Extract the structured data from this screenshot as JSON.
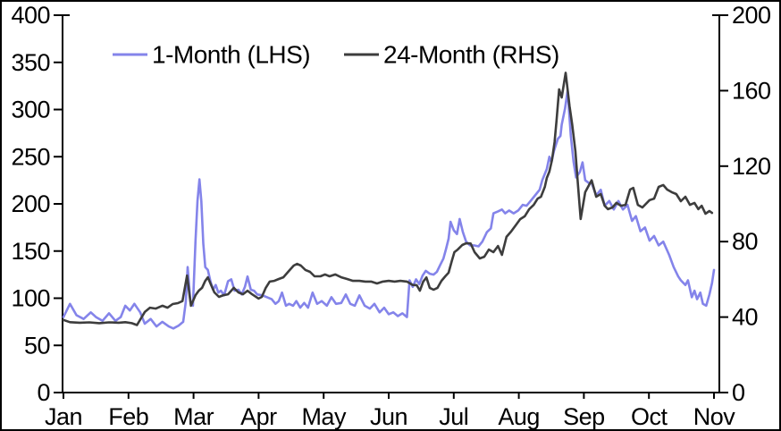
{
  "chart_data": {
    "type": "line",
    "title": "",
    "grid": false,
    "legend_position": "top",
    "x_axis": {
      "categories": [
        "Jan",
        "Feb",
        "Mar",
        "Apr",
        "May",
        "Jun",
        "Jul",
        "Aug",
        "Sep",
        "Oct",
        "Nov"
      ],
      "range": [
        0,
        10.1
      ]
    },
    "y_axis_left": {
      "ticks": [
        0,
        50,
        100,
        150,
        200,
        250,
        300,
        350,
        400
      ],
      "range": [
        0,
        400
      ]
    },
    "y_axis_right": {
      "ticks": [
        0,
        40,
        80,
        120,
        160,
        200
      ],
      "range": [
        0,
        200
      ]
    },
    "axis_color": "#000000",
    "series": [
      {
        "name": "1-Month (LHS)",
        "axis": "left",
        "color": "#8484ea",
        "points": [
          [
            0.0,
            80
          ],
          [
            0.1,
            94
          ],
          [
            0.2,
            82
          ],
          [
            0.31,
            78
          ],
          [
            0.42,
            85
          ],
          [
            0.5,
            80
          ],
          [
            0.6,
            76
          ],
          [
            0.7,
            84
          ],
          [
            0.8,
            76
          ],
          [
            0.88,
            80
          ],
          [
            0.95,
            92
          ],
          [
            1.02,
            87
          ],
          [
            1.09,
            94
          ],
          [
            1.18,
            85
          ],
          [
            1.25,
            73
          ],
          [
            1.34,
            78
          ],
          [
            1.43,
            70
          ],
          [
            1.52,
            75
          ],
          [
            1.62,
            70
          ],
          [
            1.69,
            68
          ],
          [
            1.77,
            71
          ],
          [
            1.84,
            75
          ],
          [
            1.88,
            96
          ],
          [
            1.91,
            133
          ],
          [
            1.95,
            97
          ],
          [
            1.99,
            92
          ],
          [
            2.03,
            161
          ],
          [
            2.06,
            203
          ],
          [
            2.09,
            226
          ],
          [
            2.12,
            203
          ],
          [
            2.15,
            158
          ],
          [
            2.18,
            133
          ],
          [
            2.22,
            130
          ],
          [
            2.26,
            118
          ],
          [
            2.3,
            109
          ],
          [
            2.34,
            114
          ],
          [
            2.38,
            106
          ],
          [
            2.42,
            108
          ],
          [
            2.47,
            103
          ],
          [
            2.53,
            118
          ],
          [
            2.58,
            120
          ],
          [
            2.63,
            108
          ],
          [
            2.69,
            109
          ],
          [
            2.74,
            104
          ],
          [
            2.79,
            112
          ],
          [
            2.83,
            123
          ],
          [
            2.88,
            109
          ],
          [
            2.93,
            108
          ],
          [
            2.98,
            104
          ],
          [
            3.06,
            103
          ],
          [
            3.13,
            101
          ],
          [
            3.2,
            99
          ],
          [
            3.26,
            94
          ],
          [
            3.31,
            97
          ],
          [
            3.36,
            106
          ],
          [
            3.42,
            92
          ],
          [
            3.47,
            94
          ],
          [
            3.53,
            92
          ],
          [
            3.58,
            97
          ],
          [
            3.64,
            90
          ],
          [
            3.7,
            95
          ],
          [
            3.76,
            90
          ],
          [
            3.83,
            106
          ],
          [
            3.9,
            94
          ],
          [
            3.97,
            97
          ],
          [
            4.05,
            92
          ],
          [
            4.12,
            101
          ],
          [
            4.19,
            94
          ],
          [
            4.27,
            95
          ],
          [
            4.34,
            104
          ],
          [
            4.41,
            94
          ],
          [
            4.48,
            92
          ],
          [
            4.55,
            103
          ],
          [
            4.63,
            92
          ],
          [
            4.71,
            89
          ],
          [
            4.78,
            94
          ],
          [
            4.86,
            85
          ],
          [
            4.93,
            90
          ],
          [
            5.0,
            83
          ],
          [
            5.07,
            85
          ],
          [
            5.14,
            81
          ],
          [
            5.21,
            84
          ],
          [
            5.28,
            80
          ],
          [
            5.32,
            119
          ],
          [
            5.37,
            112
          ],
          [
            5.42,
            120
          ],
          [
            5.47,
            115
          ],
          [
            5.52,
            124
          ],
          [
            5.57,
            129
          ],
          [
            5.63,
            126
          ],
          [
            5.69,
            125
          ],
          [
            5.74,
            128
          ],
          [
            5.79,
            135
          ],
          [
            5.84,
            142
          ],
          [
            5.88,
            152
          ],
          [
            5.92,
            163
          ],
          [
            5.95,
            181
          ],
          [
            6.0,
            172
          ],
          [
            6.05,
            168
          ],
          [
            6.09,
            184
          ],
          [
            6.14,
            170
          ],
          [
            6.19,
            160
          ],
          [
            6.25,
            156
          ],
          [
            6.31,
            156
          ],
          [
            6.38,
            155
          ],
          [
            6.44,
            160
          ],
          [
            6.51,
            170
          ],
          [
            6.57,
            174
          ],
          [
            6.61,
            190
          ],
          [
            6.68,
            192
          ],
          [
            6.74,
            194
          ],
          [
            6.79,
            190
          ],
          [
            6.85,
            193
          ],
          [
            6.92,
            190
          ],
          [
            6.99,
            193
          ],
          [
            7.06,
            199
          ],
          [
            7.12,
            198
          ],
          [
            7.18,
            203
          ],
          [
            7.25,
            209
          ],
          [
            7.32,
            215
          ],
          [
            7.36,
            225
          ],
          [
            7.43,
            237
          ],
          [
            7.47,
            250
          ],
          [
            7.5,
            244
          ],
          [
            7.54,
            256
          ],
          [
            7.6,
            269
          ],
          [
            7.64,
            272
          ],
          [
            7.66,
            284
          ],
          [
            7.71,
            301
          ],
          [
            7.75,
            320
          ],
          [
            7.8,
            272
          ],
          [
            7.84,
            245
          ],
          [
            7.88,
            228
          ],
          [
            7.94,
            234
          ],
          [
            7.98,
            244
          ],
          [
            8.02,
            225
          ],
          [
            8.08,
            222
          ],
          [
            8.12,
            222
          ],
          [
            8.19,
            209
          ],
          [
            8.26,
            215
          ],
          [
            8.32,
            198
          ],
          [
            8.39,
            203
          ],
          [
            8.46,
            194
          ],
          [
            8.53,
            203
          ],
          [
            8.6,
            194
          ],
          [
            8.67,
            199
          ],
          [
            8.74,
            182
          ],
          [
            8.8,
            187
          ],
          [
            8.87,
            171
          ],
          [
            8.94,
            175
          ],
          [
            9.01,
            161
          ],
          [
            9.08,
            166
          ],
          [
            9.15,
            156
          ],
          [
            9.22,
            160
          ],
          [
            9.31,
            146
          ],
          [
            9.38,
            133
          ],
          [
            9.45,
            123
          ],
          [
            9.49,
            119
          ],
          [
            9.56,
            114
          ],
          [
            9.6,
            119
          ],
          [
            9.66,
            101
          ],
          [
            9.7,
            108
          ],
          [
            9.74,
            99
          ],
          [
            9.79,
            106
          ],
          [
            9.83,
            94
          ],
          [
            9.88,
            92
          ],
          [
            9.93,
            104
          ],
          [
            9.97,
            116
          ],
          [
            10.0,
            130
          ]
        ]
      },
      {
        "name": "24-Month (RHS)",
        "axis": "right",
        "color": "#3d3d3d",
        "points": [
          [
            0.0,
            38.5
          ],
          [
            0.1,
            37.3
          ],
          [
            0.25,
            37.0
          ],
          [
            0.4,
            37.2
          ],
          [
            0.55,
            36.8
          ],
          [
            0.7,
            37.2
          ],
          [
            0.85,
            37.0
          ],
          [
            0.95,
            37.3
          ],
          [
            1.05,
            36.8
          ],
          [
            1.13,
            35.8
          ],
          [
            1.25,
            42.7
          ],
          [
            1.33,
            45.0
          ],
          [
            1.42,
            44.5
          ],
          [
            1.52,
            46.0
          ],
          [
            1.6,
            45.0
          ],
          [
            1.68,
            46.9
          ],
          [
            1.76,
            47.4
          ],
          [
            1.83,
            48.5
          ],
          [
            1.9,
            62.0
          ],
          [
            1.96,
            46.0
          ],
          [
            2.03,
            51.6
          ],
          [
            2.08,
            54.0
          ],
          [
            2.13,
            55.5
          ],
          [
            2.18,
            59.2
          ],
          [
            2.22,
            61.1
          ],
          [
            2.27,
            56.9
          ],
          [
            2.32,
            53.1
          ],
          [
            2.39,
            50.7
          ],
          [
            2.46,
            51.6
          ],
          [
            2.53,
            52.1
          ],
          [
            2.62,
            55.5
          ],
          [
            2.69,
            53.1
          ],
          [
            2.76,
            52.1
          ],
          [
            2.83,
            54.0
          ],
          [
            2.9,
            52.1
          ],
          [
            3.0,
            49.8
          ],
          [
            3.05,
            50.7
          ],
          [
            3.11,
            55.5
          ],
          [
            3.17,
            58.8
          ],
          [
            3.24,
            59.2
          ],
          [
            3.31,
            60.2
          ],
          [
            3.38,
            61.1
          ],
          [
            3.48,
            65.0
          ],
          [
            3.54,
            67.3
          ],
          [
            3.59,
            68.2
          ],
          [
            3.65,
            67.3
          ],
          [
            3.72,
            65.0
          ],
          [
            3.79,
            64.0
          ],
          [
            3.86,
            61.6
          ],
          [
            3.95,
            61.6
          ],
          [
            4.02,
            62.6
          ],
          [
            4.09,
            61.6
          ],
          [
            4.18,
            62.6
          ],
          [
            4.27,
            61.1
          ],
          [
            4.36,
            60.2
          ],
          [
            4.45,
            59.2
          ],
          [
            4.55,
            59.2
          ],
          [
            4.64,
            58.8
          ],
          [
            4.73,
            58.8
          ],
          [
            4.82,
            57.8
          ],
          [
            4.91,
            58.8
          ],
          [
            5.0,
            59.2
          ],
          [
            5.09,
            58.8
          ],
          [
            5.18,
            59.2
          ],
          [
            5.28,
            58.8
          ],
          [
            5.37,
            57.0
          ],
          [
            5.43,
            56.9
          ],
          [
            5.48,
            54.0
          ],
          [
            5.53,
            58.8
          ],
          [
            5.58,
            61.0
          ],
          [
            5.63,
            55.5
          ],
          [
            5.69,
            54.5
          ],
          [
            5.75,
            55.5
          ],
          [
            5.81,
            59.2
          ],
          [
            5.87,
            61.6
          ],
          [
            5.92,
            63.5
          ],
          [
            5.97,
            69.7
          ],
          [
            6.01,
            74.4
          ],
          [
            6.06,
            75.8
          ],
          [
            6.13,
            78.2
          ],
          [
            6.19,
            79.1
          ],
          [
            6.26,
            79.0
          ],
          [
            6.32,
            74.4
          ],
          [
            6.4,
            71.1
          ],
          [
            6.47,
            72.0
          ],
          [
            6.54,
            75.8
          ],
          [
            6.61,
            74.4
          ],
          [
            6.68,
            77.7
          ],
          [
            6.74,
            73.0
          ],
          [
            6.81,
            82.5
          ],
          [
            6.88,
            85.3
          ],
          [
            6.95,
            88.6
          ],
          [
            7.02,
            91.9
          ],
          [
            7.09,
            93.4
          ],
          [
            7.16,
            97.2
          ],
          [
            7.23,
            99.5
          ],
          [
            7.29,
            102.8
          ],
          [
            7.34,
            103.8
          ],
          [
            7.4,
            109.0
          ],
          [
            7.43,
            113.7
          ],
          [
            7.47,
            117.1
          ],
          [
            7.51,
            123.2
          ],
          [
            7.55,
            132.7
          ],
          [
            7.58,
            144.1
          ],
          [
            7.62,
            160.7
          ],
          [
            7.66,
            156.4
          ],
          [
            7.72,
            169.5
          ],
          [
            7.78,
            151.7
          ],
          [
            7.82,
            142.2
          ],
          [
            7.87,
            128.0
          ],
          [
            7.91,
            110.0
          ],
          [
            7.95,
            92.0
          ],
          [
            8.02,
            106.2
          ],
          [
            8.08,
            110.0
          ],
          [
            8.12,
            112.5
          ],
          [
            8.19,
            103.8
          ],
          [
            8.26,
            105.2
          ],
          [
            8.32,
            99.0
          ],
          [
            8.37,
            97.2
          ],
          [
            8.44,
            98.1
          ],
          [
            8.5,
            100.5
          ],
          [
            8.57,
            99.0
          ],
          [
            8.64,
            99.5
          ],
          [
            8.71,
            107.6
          ],
          [
            8.76,
            108.5
          ],
          [
            8.83,
            99.5
          ],
          [
            8.9,
            98.1
          ],
          [
            9.01,
            102.0
          ],
          [
            9.08,
            102.8
          ],
          [
            9.15,
            109.0
          ],
          [
            9.22,
            110.0
          ],
          [
            9.28,
            107.6
          ],
          [
            9.35,
            106.2
          ],
          [
            9.42,
            105.2
          ],
          [
            9.49,
            101.4
          ],
          [
            9.56,
            103.8
          ],
          [
            9.63,
            99.5
          ],
          [
            9.7,
            100.5
          ],
          [
            9.76,
            97.2
          ],
          [
            9.81,
            99.0
          ],
          [
            9.87,
            94.8
          ],
          [
            9.93,
            96.2
          ],
          [
            9.97,
            95.2
          ]
        ]
      }
    ]
  }
}
